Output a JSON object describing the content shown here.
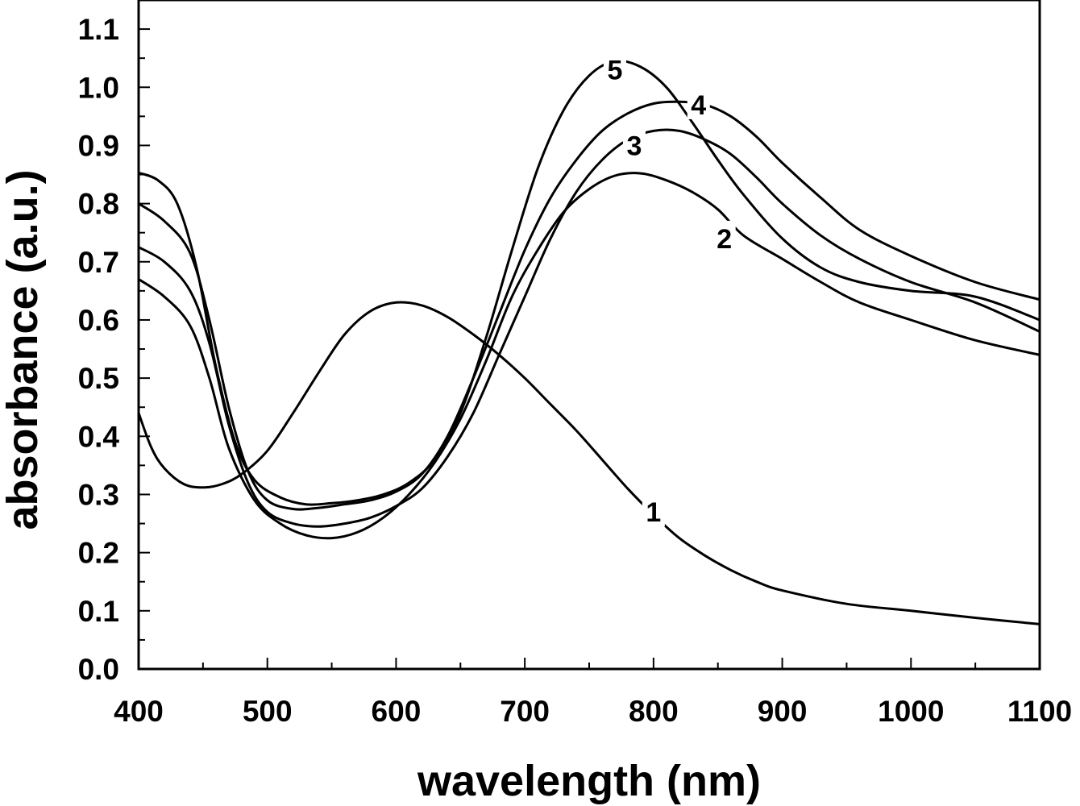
{
  "chart_data": {
    "type": "line",
    "title": "",
    "xlabel": "wavelength (nm)",
    "ylabel": "absorbance (a.u.)",
    "xlim": [
      400,
      1100
    ],
    "ylim": [
      0.0,
      1.15
    ],
    "grid": false,
    "legend": "none",
    "x_ticks": [
      "400",
      "500",
      "600",
      "700",
      "800",
      "900",
      "1000",
      "1100"
    ],
    "y_ticks": [
      "0.0",
      "0.1",
      "0.2",
      "0.3",
      "0.4",
      "0.5",
      "0.6",
      "0.7",
      "0.8",
      "0.9",
      "1.0",
      "1.1"
    ],
    "series": [
      {
        "name": "1",
        "label_at": [
          800,
          0.27
        ],
        "points": [
          [
            400,
            0.44
          ],
          [
            410,
            0.38
          ],
          [
            420,
            0.345
          ],
          [
            435,
            0.318
          ],
          [
            450,
            0.312
          ],
          [
            465,
            0.318
          ],
          [
            480,
            0.335
          ],
          [
            500,
            0.375
          ],
          [
            520,
            0.44
          ],
          [
            540,
            0.51
          ],
          [
            560,
            0.575
          ],
          [
            580,
            0.615
          ],
          [
            600,
            0.63
          ],
          [
            620,
            0.625
          ],
          [
            640,
            0.605
          ],
          [
            660,
            0.575
          ],
          [
            680,
            0.54
          ],
          [
            700,
            0.5
          ],
          [
            720,
            0.455
          ],
          [
            740,
            0.41
          ],
          [
            760,
            0.36
          ],
          [
            780,
            0.31
          ],
          [
            800,
            0.265
          ],
          [
            820,
            0.225
          ],
          [
            840,
            0.195
          ],
          [
            860,
            0.17
          ],
          [
            880,
            0.15
          ],
          [
            900,
            0.135
          ],
          [
            950,
            0.112
          ],
          [
            1000,
            0.1
          ],
          [
            1050,
            0.088
          ],
          [
            1100,
            0.077
          ]
        ]
      },
      {
        "name": "2",
        "label_at": [
          855,
          0.74
        ],
        "points": [
          [
            400,
            0.67
          ],
          [
            420,
            0.64
          ],
          [
            440,
            0.59
          ],
          [
            455,
            0.5
          ],
          [
            470,
            0.38
          ],
          [
            490,
            0.29
          ],
          [
            510,
            0.25
          ],
          [
            530,
            0.23
          ],
          [
            550,
            0.225
          ],
          [
            570,
            0.235
          ],
          [
            590,
            0.26
          ],
          [
            610,
            0.3
          ],
          [
            630,
            0.355
          ],
          [
            650,
            0.43
          ],
          [
            670,
            0.53
          ],
          [
            690,
            0.64
          ],
          [
            710,
            0.72
          ],
          [
            730,
            0.785
          ],
          [
            750,
            0.825
          ],
          [
            770,
            0.848
          ],
          [
            790,
            0.852
          ],
          [
            810,
            0.84
          ],
          [
            830,
            0.82
          ],
          [
            850,
            0.79
          ],
          [
            870,
            0.745
          ],
          [
            900,
            0.705
          ],
          [
            930,
            0.665
          ],
          [
            960,
            0.63
          ],
          [
            1000,
            0.6
          ],
          [
            1050,
            0.565
          ],
          [
            1100,
            0.54
          ]
        ]
      },
      {
        "name": "3",
        "label_at": [
          785,
          0.9
        ],
        "points": [
          [
            400,
            0.725
          ],
          [
            420,
            0.7
          ],
          [
            440,
            0.65
          ],
          [
            455,
            0.56
          ],
          [
            470,
            0.42
          ],
          [
            485,
            0.32
          ],
          [
            500,
            0.27
          ],
          [
            520,
            0.25
          ],
          [
            540,
            0.245
          ],
          [
            560,
            0.25
          ],
          [
            580,
            0.26
          ],
          [
            600,
            0.28
          ],
          [
            620,
            0.31
          ],
          [
            640,
            0.365
          ],
          [
            660,
            0.44
          ],
          [
            680,
            0.54
          ],
          [
            700,
            0.64
          ],
          [
            720,
            0.74
          ],
          [
            740,
            0.82
          ],
          [
            760,
            0.875
          ],
          [
            780,
            0.91
          ],
          [
            800,
            0.925
          ],
          [
            820,
            0.925
          ],
          [
            840,
            0.91
          ],
          [
            860,
            0.885
          ],
          [
            880,
            0.845
          ],
          [
            900,
            0.8
          ],
          [
            930,
            0.745
          ],
          [
            960,
            0.705
          ],
          [
            1000,
            0.665
          ],
          [
            1050,
            0.63
          ],
          [
            1100,
            0.58
          ]
        ]
      },
      {
        "name": "4",
        "label_at": [
          835,
          0.97
        ],
        "points": [
          [
            400,
            0.8
          ],
          [
            420,
            0.77
          ],
          [
            440,
            0.715
          ],
          [
            455,
            0.6
          ],
          [
            470,
            0.45
          ],
          [
            485,
            0.34
          ],
          [
            500,
            0.29
          ],
          [
            520,
            0.275
          ],
          [
            540,
            0.277
          ],
          [
            560,
            0.283
          ],
          [
            580,
            0.29
          ],
          [
            600,
            0.305
          ],
          [
            620,
            0.335
          ],
          [
            640,
            0.4
          ],
          [
            660,
            0.5
          ],
          [
            680,
            0.61
          ],
          [
            700,
            0.72
          ],
          [
            720,
            0.81
          ],
          [
            740,
            0.875
          ],
          [
            760,
            0.925
          ],
          [
            780,
            0.955
          ],
          [
            800,
            0.972
          ],
          [
            820,
            0.975
          ],
          [
            840,
            0.97
          ],
          [
            860,
            0.95
          ],
          [
            880,
            0.915
          ],
          [
            900,
            0.87
          ],
          [
            930,
            0.81
          ],
          [
            960,
            0.755
          ],
          [
            1000,
            0.71
          ],
          [
            1050,
            0.665
          ],
          [
            1100,
            0.635
          ]
        ]
      },
      {
        "name": "5",
        "label_at": [
          770,
          1.03
        ],
        "points": [
          [
            400,
            0.853
          ],
          [
            415,
            0.84
          ],
          [
            430,
            0.8
          ],
          [
            445,
            0.69
          ],
          [
            460,
            0.52
          ],
          [
            475,
            0.39
          ],
          [
            490,
            0.325
          ],
          [
            510,
            0.295
          ],
          [
            530,
            0.283
          ],
          [
            550,
            0.285
          ],
          [
            570,
            0.29
          ],
          [
            590,
            0.3
          ],
          [
            610,
            0.32
          ],
          [
            630,
            0.36
          ],
          [
            650,
            0.44
          ],
          [
            670,
            0.57
          ],
          [
            690,
            0.72
          ],
          [
            710,
            0.86
          ],
          [
            730,
            0.96
          ],
          [
            750,
            1.02
          ],
          [
            770,
            1.045
          ],
          [
            790,
            1.035
          ],
          [
            810,
            1.0
          ],
          [
            830,
            0.94
          ],
          [
            850,
            0.875
          ],
          [
            870,
            0.815
          ],
          [
            900,
            0.74
          ],
          [
            930,
            0.69
          ],
          [
            960,
            0.665
          ],
          [
            1000,
            0.65
          ],
          [
            1050,
            0.64
          ],
          [
            1100,
            0.6
          ]
        ]
      }
    ]
  }
}
